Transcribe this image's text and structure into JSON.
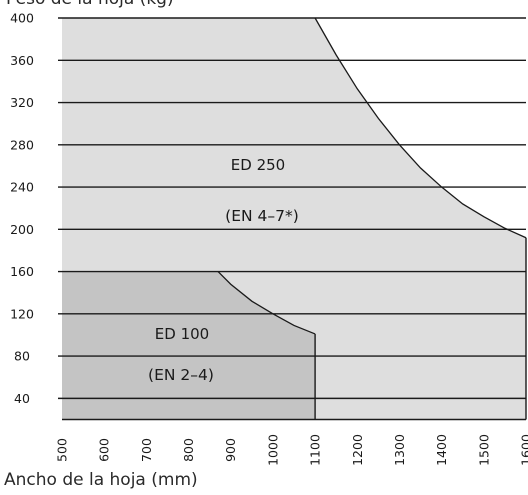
{
  "chart_data": {
    "type": "area",
    "xlabel": "Ancho de la hoja (mm)",
    "ylabel": "Peso de la hoja (kg)",
    "xlim": [
      500,
      1600
    ],
    "ylim": [
      20,
      400
    ],
    "x_ticks": [
      500,
      600,
      700,
      800,
      900,
      1000,
      1100,
      1200,
      1300,
      1400,
      1500,
      1600
    ],
    "y_ticks": [
      40,
      80,
      120,
      160,
      200,
      240,
      280,
      320,
      360,
      400
    ],
    "grid": "horizontal",
    "regions": [
      {
        "name": "ED 250",
        "standard": "(EN 4–7*)",
        "color": "#dedede",
        "boundary": [
          {
            "x": 1100,
            "y": 400
          },
          {
            "x": 1150,
            "y": 365
          },
          {
            "x": 1200,
            "y": 333
          },
          {
            "x": 1250,
            "y": 305
          },
          {
            "x": 1300,
            "y": 280
          },
          {
            "x": 1350,
            "y": 258
          },
          {
            "x": 1400,
            "y": 240
          },
          {
            "x": 1450,
            "y": 224
          },
          {
            "x": 1500,
            "y": 212
          },
          {
            "x": 1550,
            "y": 201
          },
          {
            "x": 1600,
            "y": 192
          }
        ]
      },
      {
        "name": "ED 100",
        "standard": "(EN 2–4)",
        "color": "#c4c4c4",
        "boundary": [
          {
            "x": 870,
            "y": 160
          },
          {
            "x": 900,
            "y": 148
          },
          {
            "x": 950,
            "y": 132
          },
          {
            "x": 1000,
            "y": 120
          },
          {
            "x": 1050,
            "y": 109
          },
          {
            "x": 1100,
            "y": 101
          }
        ]
      }
    ]
  }
}
